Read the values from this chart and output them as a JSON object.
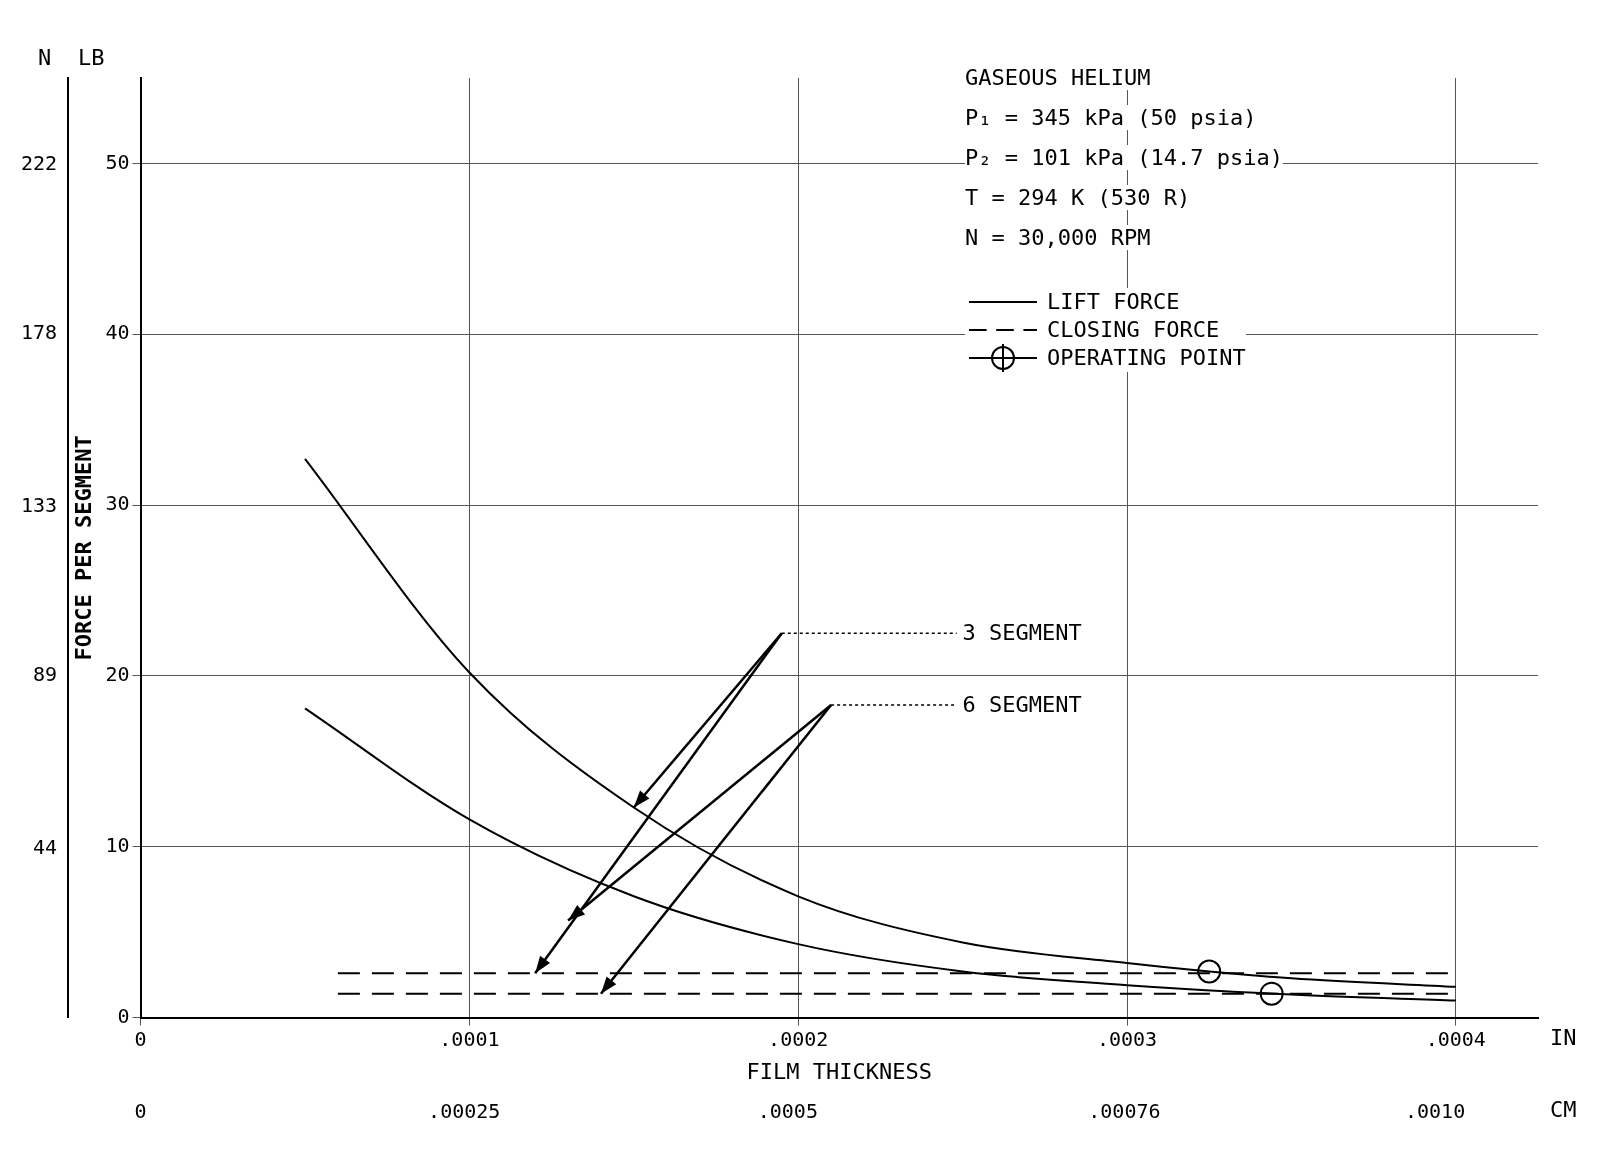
{
  "chart_data": {
    "type": "line",
    "xlabel": "FILM THICKNESS",
    "ylabel": "FORCE PER SEGMENT",
    "annotations": [
      "GASEOUS HELIUM",
      "P₁ = 345 kPa (50 psia)",
      "P₂ = 101 kPa (14.7 psia)",
      "T = 294 K (530 R)",
      "N = 30,000 RPM",
      "3 SEGMENT",
      "6 SEGMENT",
      "N",
      "LB",
      "IN",
      "CM"
    ],
    "xlim": [
      0,
      0.000425
    ],
    "xticks": [
      0,
      {
        "value": 0.0001,
        "label": ".0001"
      },
      {
        "value": 0.0002,
        "label": ".0002"
      },
      {
        "value": 0.0003,
        "label": ".0003"
      },
      {
        "value": 0.0004,
        "label": ".0004"
      }
    ],
    "x2lim": [
      0,
      0.0010795
    ],
    "x2ticks": [
      0,
      {
        "value": 0.00025,
        "label": ".00025"
      },
      {
        "value": 0.0005,
        "label": ".0005"
      },
      {
        "value": 0.00076,
        "label": ".00076"
      },
      {
        "value": 0.001,
        "label": ".0010"
      }
    ],
    "ylim": [
      0,
      55
    ],
    "yticks": [
      0,
      10,
      20,
      30,
      40,
      50
    ],
    "y2lim": [
      0,
      244.6
    ],
    "y2ticks": [
      44,
      89,
      133,
      178,
      222
    ],
    "grid": true,
    "legend": "top right",
    "series": [
      {
        "name": "LIFT FORCE",
        "color": "#000000",
        "line_style": "solid",
        "marker": "none",
        "x": [
          5e-05,
          0.0001,
          0.00015,
          0.0002,
          0.00025,
          0.0003,
          0.000325,
          0.00035,
          0.0004
        ],
        "values": [
          32.7,
          20.2,
          12.3,
          7.1,
          4.4,
          3.2,
          2.7,
          2.3,
          1.8
        ]
      },
      {
        "color": "#000000",
        "line_style": "solid",
        "marker": "none",
        "x": [
          5e-05,
          0.0001,
          0.00015,
          0.0002,
          0.00025,
          0.0003,
          0.00035,
          0.0004
        ],
        "values": [
          18.1,
          11.6,
          7.1,
          4.3,
          2.7,
          1.9,
          1.35,
          1.0
        ]
      },
      {
        "name": "CLOSING FORCE",
        "color": "#000000",
        "line_style": "dashed",
        "marker": "none",
        "x": [
          6e-05,
          0.0004
        ],
        "values": [
          2.6,
          2.6
        ]
      },
      {
        "color": "#000000",
        "line_style": "dashed",
        "marker": "none",
        "x": [
          6e-05,
          0.0004
        ],
        "values": [
          1.4,
          1.4
        ]
      },
      {
        "name": "OPERATING POINT",
        "type": "scatter",
        "color": "#000000",
        "marker": "circle",
        "x": [
          0.000325,
          0.000344
        ],
        "values": [
          2.7,
          1.4
        ]
      }
    ]
  }
}
